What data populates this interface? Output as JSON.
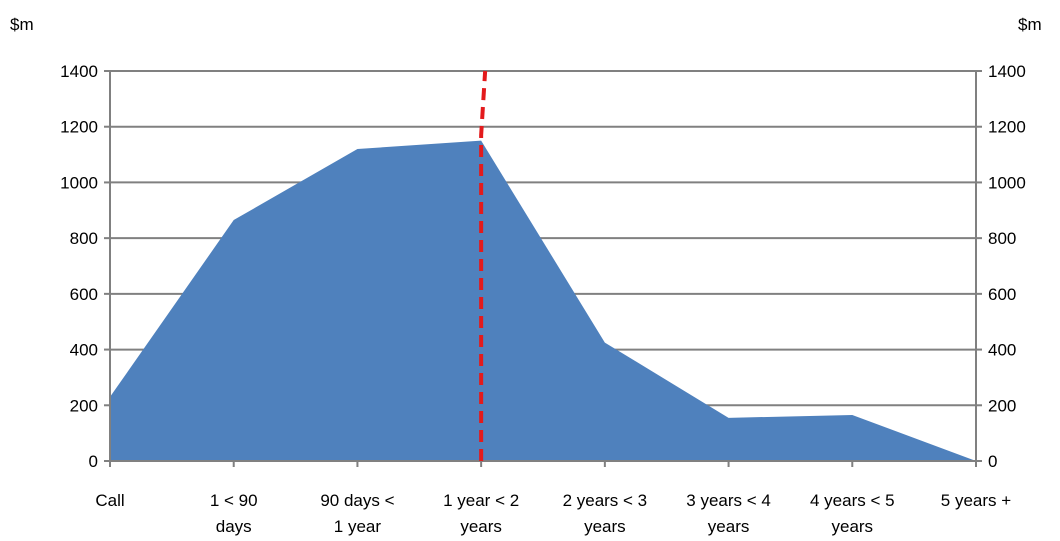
{
  "chart_data": {
    "type": "area",
    "title": "",
    "xlabel": "",
    "ylabel_left": "$m",
    "ylabel_right": "$m",
    "ylim": [
      0,
      1400
    ],
    "y_ticks": [
      0,
      200,
      400,
      600,
      800,
      1000,
      1200,
      1400
    ],
    "grid": true,
    "legend": "none",
    "categories": [
      [
        "Call"
      ],
      [
        "1 < 90",
        "days"
      ],
      [
        "90 days <",
        "1 year"
      ],
      [
        "1 year < 2",
        "years"
      ],
      [
        "2 years < 3",
        "years"
      ],
      [
        "3 years < 4",
        "years"
      ],
      [
        "4 years < 5",
        "years"
      ],
      [
        "5 years +"
      ]
    ],
    "values": [
      230,
      865,
      1120,
      1150,
      425,
      155,
      165,
      0
    ],
    "annotations": [
      {
        "type": "dashed-vertical-line",
        "category": "1 year < 2 years",
        "ystart": 0,
        "yend": 1400,
        "color": "#e31a1c"
      }
    ],
    "colors": {
      "area": "#4f81bd",
      "grid": "#808080",
      "axis": "#808080",
      "marker_line": "#e31a1c"
    }
  }
}
